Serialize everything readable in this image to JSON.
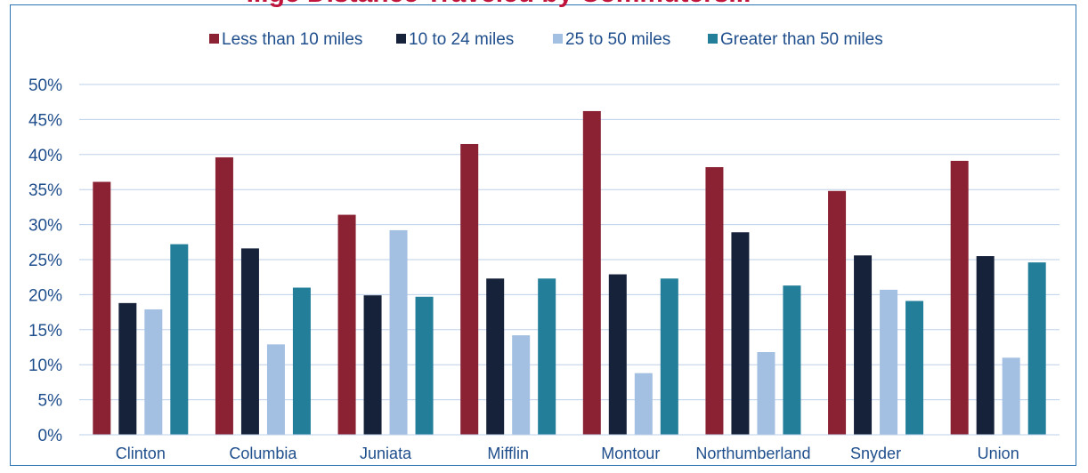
{
  "chart_data": {
    "type": "bar",
    "title": "...ge Distance Traveled by Commuters...",
    "categories": [
      "Clinton",
      "Columbia",
      "Juniata",
      "Mifflin",
      "Montour",
      "Northumberland",
      "Snyder",
      "Union"
    ],
    "series": [
      {
        "name": "Less than 10 miles",
        "color": "#8b2233",
        "values": [
          36.1,
          39.6,
          31.4,
          41.5,
          46.2,
          38.2,
          34.8,
          39.1
        ]
      },
      {
        "name": "10 to 24 miles",
        "color": "#16213a",
        "values": [
          18.8,
          26.6,
          19.9,
          22.3,
          22.9,
          28.9,
          25.6,
          25.5
        ]
      },
      {
        "name": "25 to 50 miles",
        "color": "#a3bfe1",
        "values": [
          17.9,
          12.9,
          29.2,
          14.2,
          8.8,
          11.8,
          20.7,
          11.0
        ]
      },
      {
        "name": "Greater than 50 miles",
        "color": "#237e9a",
        "values": [
          27.2,
          21.0,
          19.7,
          22.3,
          22.3,
          21.3,
          19.1,
          24.6
        ]
      }
    ],
    "ylim": [
      0,
      50
    ],
    "yticks": [
      "0%",
      "5%",
      "10%",
      "15%",
      "20%",
      "25%",
      "30%",
      "35%",
      "40%",
      "45%",
      "50%"
    ],
    "grid": true,
    "legend": "top-center",
    "colors": {
      "axis_text": "#1f4e8c",
      "gridline": "#bdd0e9",
      "frame": "#2e75b6",
      "title": "#c0143c"
    }
  }
}
